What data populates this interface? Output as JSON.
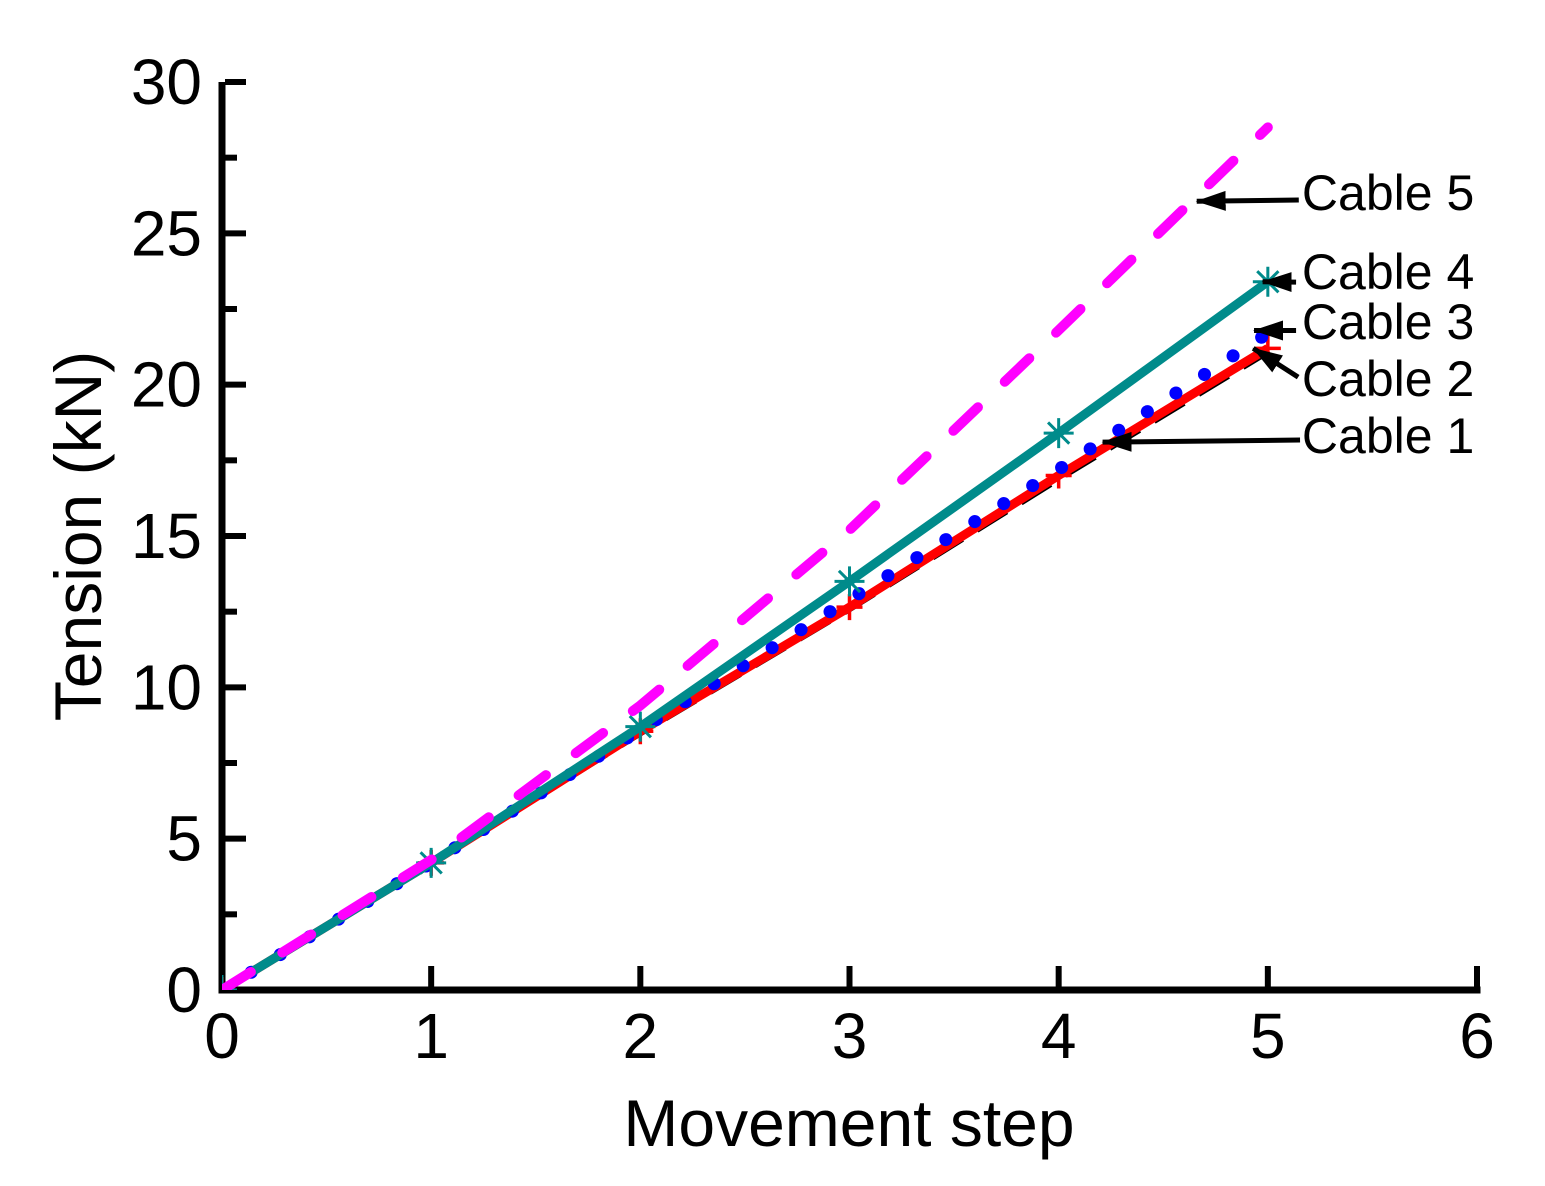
{
  "figure": {
    "background": "#ffffff",
    "text_color": "#000000"
  },
  "chart_data": {
    "type": "line",
    "title": "",
    "xlabel": "Movement step",
    "ylabel": "Tension (kN)",
    "xlim": [
      0,
      6
    ],
    "ylim": [
      0,
      30
    ],
    "x_major_ticks": [
      0,
      1,
      2,
      3,
      4,
      5,
      6
    ],
    "y_major_ticks": [
      0,
      5,
      10,
      15,
      20,
      25,
      30
    ],
    "y_minor_ticks": [
      2.5,
      7.5,
      12.5,
      17.5,
      22.5,
      27.5
    ],
    "grid": false,
    "legend_position": "direct-line-labels-with-arrows",
    "x": [
      0,
      1,
      2,
      3,
      4,
      5
    ],
    "series": [
      {
        "name": "Cable 1",
        "values": [
          0,
          4.2,
          8.5,
          12.6,
          16.9,
          21.1
        ],
        "color": "#000000",
        "line_style": "dashed",
        "marker": "none",
        "line_width": 7
      },
      {
        "name": "Cable 2",
        "values": [
          0,
          4.2,
          8.55,
          12.65,
          17.0,
          21.2
        ],
        "color": "#ff0000",
        "line_style": "solid",
        "marker": "plus",
        "line_width": 9
      },
      {
        "name": "Cable 3",
        "values": [
          0,
          4.2,
          8.6,
          12.9,
          17.2,
          21.7
        ],
        "color": "#0000ff",
        "line_style": "dotted",
        "marker": "none",
        "line_width": 13
      },
      {
        "name": "Cable 4",
        "values": [
          0,
          4.2,
          8.7,
          13.5,
          18.4,
          23.4
        ],
        "color": "#008b8b",
        "line_style": "solid",
        "marker": "asterisk",
        "line_width": 9
      },
      {
        "name": "Cable 5",
        "values": [
          0,
          4.3,
          9.4,
          15.2,
          21.8,
          28.5
        ],
        "color": "#ff00ff",
        "line_style": "long-dash",
        "marker": "none",
        "line_width": 10
      }
    ],
    "annotations": [
      {
        "label": "Cable 5",
        "label_at": [
          5.163,
          26.36
        ],
        "arrow_tail": [
          5.148,
          26.1
        ],
        "arrow_tip": [
          4.66,
          26.06
        ]
      },
      {
        "label": "Cable 4",
        "label_at": [
          5.163,
          23.75
        ],
        "arrow_tail": [
          5.135,
          23.39
        ],
        "arrow_tip": [
          4.975,
          23.4
        ]
      },
      {
        "label": "Cable 3",
        "label_at": [
          5.163,
          22.1
        ],
        "arrow_tail": [
          5.135,
          21.79
        ],
        "arrow_tip": [
          4.934,
          21.79
        ]
      },
      {
        "label": "Cable 2",
        "label_at": [
          5.163,
          20.22
        ],
        "arrow_tail": [
          5.145,
          20.25
        ],
        "arrow_tip": [
          4.93,
          21.2
        ]
      },
      {
        "label": "Cable 1",
        "label_at": [
          5.163,
          18.33
        ],
        "arrow_tail": [
          5.154,
          18.17
        ],
        "arrow_tip": [
          4.21,
          18.1
        ]
      }
    ]
  }
}
